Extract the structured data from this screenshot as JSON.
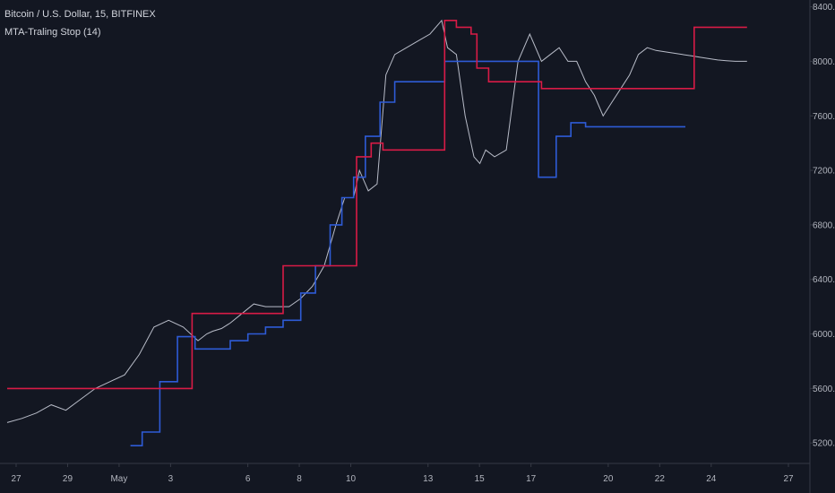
{
  "legend": {
    "symbol": "Bitcoin / U.S. Dollar, 15, BITFINEX",
    "indicator": "MTA-Traling Stop (14)"
  },
  "colors": {
    "background": "#131722",
    "price": "#b8bcc8",
    "stop_long": "#2e5bd6",
    "stop_short": "#d81b46",
    "axis_text": "#b2b5be"
  },
  "chart_data": {
    "type": "line",
    "title": "",
    "xlabel": "",
    "ylabel": "",
    "x_ticks": [
      "27",
      "29",
      "May",
      "3",
      "6",
      "8",
      "10",
      "13",
      "15",
      "17",
      "20",
      "22",
      "24",
      "27"
    ],
    "y_ticks": [
      "8400.0",
      "8000.0",
      "7600.0",
      "7200.0",
      "6800.0",
      "6400.0",
      "6000.0",
      "5600.0",
      "5200.0"
    ],
    "ylim": [
      5050,
      8450
    ],
    "x_range": [
      0,
      26
    ],
    "grid": false,
    "series": [
      {
        "role": "price",
        "color": "#b8bcc8",
        "x": [
          0,
          0.5,
          1.0,
          1.5,
          2.0,
          2.5,
          3.0,
          3.5,
          4.0,
          4.5,
          5.0,
          5.5,
          6.0,
          6.5,
          6.8,
          7.0,
          7.3,
          7.6,
          8.0,
          8.4,
          8.8,
          9.2,
          9.6,
          10.0,
          10.4,
          10.8,
          11.2,
          11.5,
          11.8,
          12.0,
          12.3,
          12.6,
          12.9,
          13.2,
          13.6,
          14.0,
          14.4,
          14.8,
          15.0,
          15.3,
          15.6,
          15.9,
          16.1,
          16.3,
          16.6,
          17.0,
          17.4,
          17.8,
          18.2,
          18.5,
          18.8,
          19.1,
          19.4,
          19.7,
          20.0,
          20.3,
          20.6,
          20.9,
          21.2,
          21.5,
          21.8,
          22.1,
          22.4,
          22.7,
          23.0,
          23.3,
          23.6,
          23.9,
          24.2,
          24.5,
          24.8,
          25.0,
          25.2
        ],
        "y": [
          5350,
          5380,
          5420,
          5480,
          5440,
          5520,
          5600,
          5650,
          5700,
          5850,
          6050,
          6100,
          6050,
          5950,
          6000,
          6020,
          6040,
          6080,
          6150,
          6220,
          6200,
          6200,
          6200,
          6260,
          6350,
          6500,
          6800,
          7000,
          7000,
          7200,
          7050,
          7100,
          7900,
          8050,
          8100,
          8150,
          8200,
          8300,
          8100,
          8050,
          7600,
          7300,
          7250,
          7350,
          7300,
          7350,
          8000,
          8200,
          8000,
          8050,
          8100,
          8000,
          8000,
          7850,
          7750,
          7600,
          7700,
          7800,
          7900,
          8050,
          8100,
          8080,
          8070,
          8060,
          8050,
          8040,
          8030,
          8020,
          8010,
          8005,
          8000,
          8000,
          8000
        ]
      },
      {
        "role": "trailing-stop-long",
        "color": "#2e5bd6",
        "x": [
          4.2,
          4.6,
          5.2,
          5.8,
          6.4,
          7.0,
          7.6,
          8.2,
          8.8,
          9.4,
          10.0,
          10.5,
          11.0,
          11.4,
          11.8,
          12.2,
          12.7,
          13.2,
          14.0,
          14.6,
          14.9,
          18.1,
          18.7,
          19.2,
          19.7,
          23.1
        ],
        "y": [
          5180,
          5280,
          5650,
          5980,
          5890,
          5890,
          5950,
          6000,
          6050,
          6100,
          6300,
          6500,
          6800,
          7000,
          7150,
          7450,
          7700,
          7850,
          7850,
          7850,
          8000,
          7150,
          7450,
          7550,
          7520,
          7520
        ]
      },
      {
        "role": "trailing-stop-short",
        "color": "#d81b46",
        "x": [
          0,
          4.2,
          6.3,
          6.8,
          9.4,
          11.9,
          12.4,
          12.8,
          14.9,
          15.3,
          15.8,
          16.0,
          16.4,
          18.2,
          18.8,
          23.2,
          23.4,
          25.2
        ],
        "y": [
          5600,
          5600,
          6150,
          6150,
          6500,
          7300,
          7400,
          7350,
          8300,
          8250,
          8200,
          7950,
          7850,
          7800,
          7800,
          7800,
          8250,
          8250
        ]
      }
    ]
  }
}
